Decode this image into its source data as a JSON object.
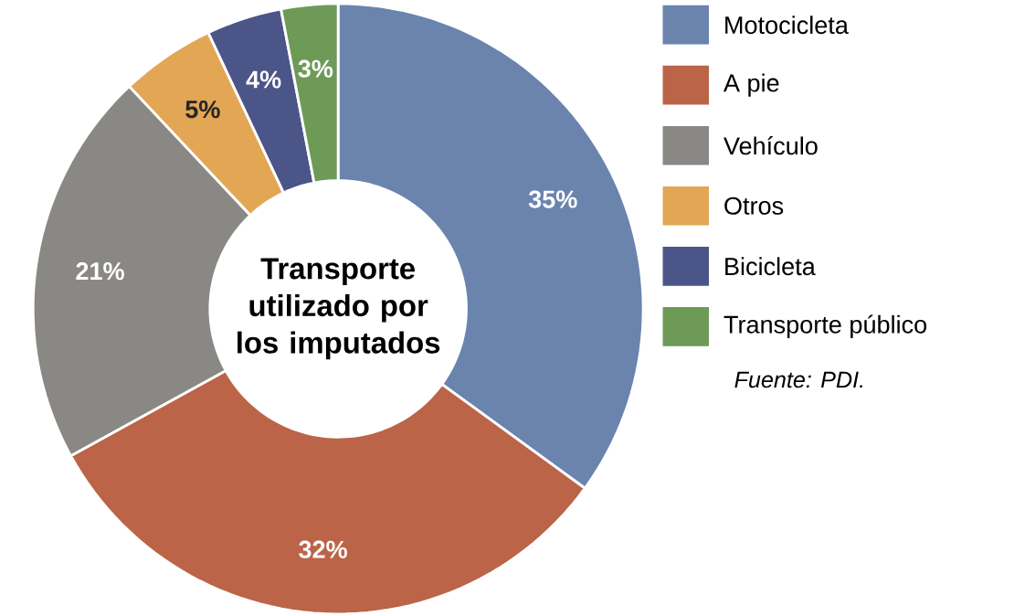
{
  "chart_data": {
    "type": "donut",
    "title": "Transporte utilizado por los imputados",
    "categories": [
      "Motocicleta",
      "A pie",
      "Vehículo",
      "Otros",
      "Bicicleta",
      "Transporte público"
    ],
    "values": [
      35,
      32,
      21,
      5,
      4,
      3
    ],
    "value_labels": [
      "35%",
      "32%",
      "21%",
      "5%",
      "4%",
      "3%"
    ],
    "colors": [
      "#6a84ae",
      "#bb6448",
      "#8a8884",
      "#e2a655",
      "#4b5588",
      "#6e9a58"
    ],
    "legend": "right",
    "annotations": [
      "Fuente: PDI."
    ]
  }
}
